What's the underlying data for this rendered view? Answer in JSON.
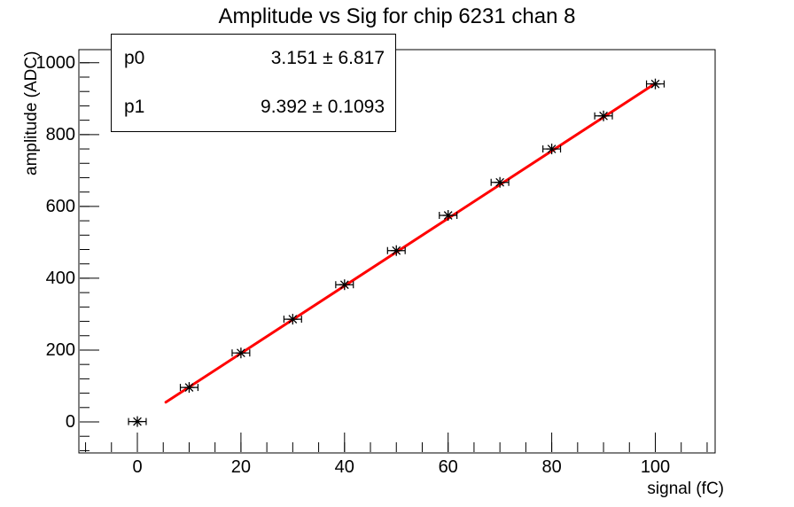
{
  "window": {
    "background": "#ffffff"
  },
  "chart_data": {
    "type": "scatter",
    "title": "Amplitude vs Sig for chip 6231 chan 8",
    "xlabel": "signal (fC)",
    "ylabel": "amplitude (ADC)",
    "xlim": [
      -11.1,
      111.6
    ],
    "ylim": [
      -84,
      1036
    ],
    "grid": false,
    "legend_position": "none",
    "x_major_ticks": [
      0,
      20,
      40,
      60,
      80,
      100
    ],
    "x_major_labels": [
      "0",
      "20",
      "40",
      "60",
      "80",
      "100"
    ],
    "x_minor_step": 5,
    "y_major_ticks": [
      0,
      200,
      400,
      600,
      800,
      1000
    ],
    "y_major_labels": [
      "0",
      "200",
      "400",
      "600",
      "800",
      "1000"
    ],
    "y_minor_step": 40,
    "points": {
      "marker": "star-with-x-error-bars",
      "color": "#000000",
      "x": [
        0,
        10,
        20,
        30,
        40,
        50,
        60,
        70,
        80,
        90,
        100
      ],
      "y": [
        1,
        96,
        192,
        286,
        382,
        477,
        575,
        667,
        760,
        852,
        941
      ],
      "x_err": 1.7
    },
    "fit": {
      "type": "linear",
      "p0": 3.151,
      "p1": 9.392,
      "x_min": 5.5,
      "x_max": 100,
      "color": "#ff0000",
      "line_width": 3
    },
    "stats_box": {
      "rows": [
        {
          "name": "p0",
          "value": "3.151 ± 6.817"
        },
        {
          "name": "p1",
          "value": "9.392 ± 0.1093"
        }
      ]
    },
    "axis_color": "#000000",
    "frame": "rectangle-no-top-right-ticks"
  }
}
